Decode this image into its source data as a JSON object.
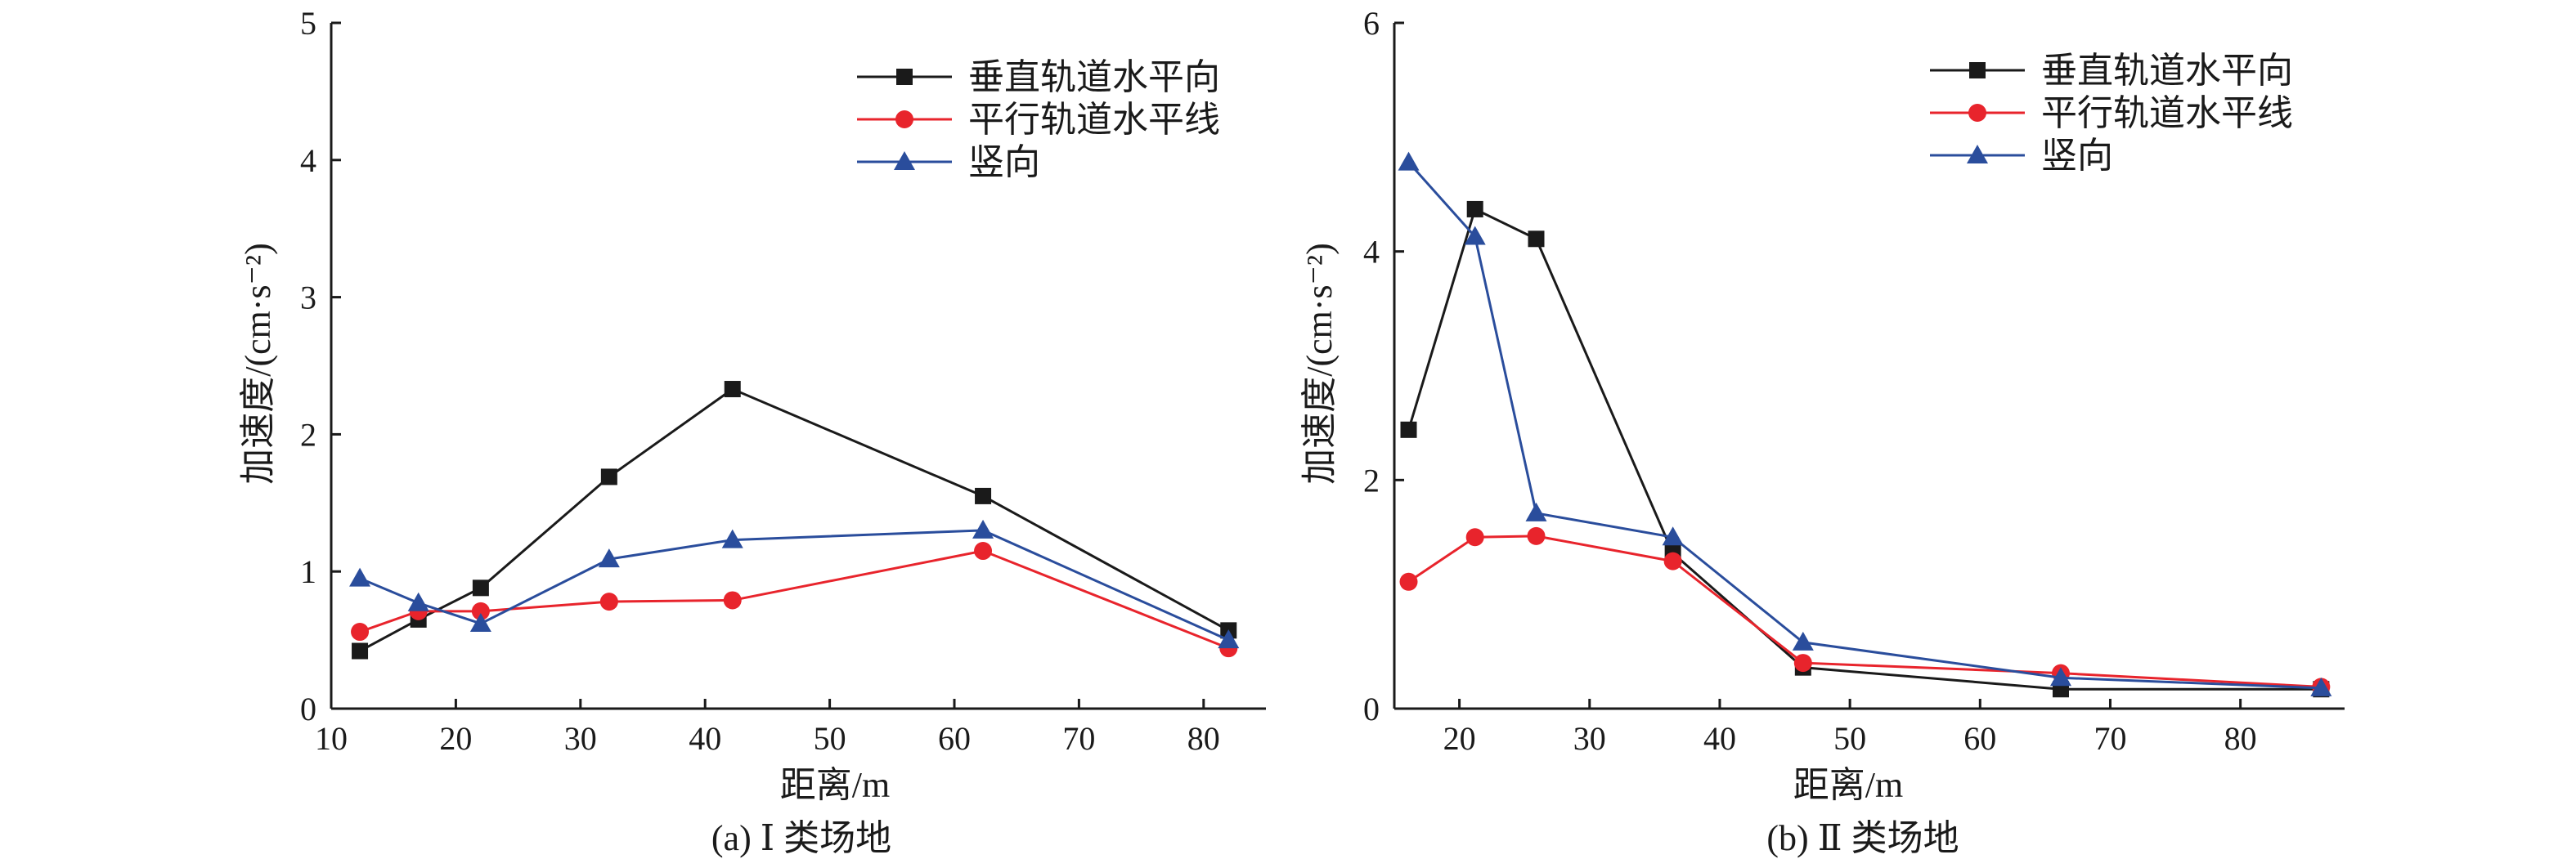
{
  "chart_data": [
    {
      "type": "line",
      "caption": "(a) Ⅰ 类场地",
      "xlabel": "距离/m",
      "ylabel": "加速度/(cm·s⁻²)",
      "xlim": [
        10,
        85
      ],
      "ylim": [
        0,
        5
      ],
      "xticks": [
        10,
        20,
        30,
        40,
        50,
        60,
        70,
        80
      ],
      "yticks": [
        0,
        1,
        2,
        3,
        4,
        5
      ],
      "grid": false,
      "legend_position": "top-right",
      "x": [
        12.3,
        17,
        22,
        32.3,
        42.2,
        62.3,
        82
      ],
      "series": [
        {
          "name": "垂直轨道水平向",
          "marker": "square",
          "color": "#1a1a1a",
          "values": [
            0.42,
            0.65,
            0.88,
            1.69,
            2.33,
            1.55,
            0.57
          ]
        },
        {
          "name": "平行轨道水平线",
          "marker": "circle",
          "color": "#e8242c",
          "values": [
            0.56,
            0.71,
            0.71,
            0.78,
            0.79,
            1.15,
            0.44
          ]
        },
        {
          "name": "竖向",
          "marker": "triangle",
          "color": "#2a4d9c",
          "values": [
            0.95,
            0.77,
            0.62,
            1.09,
            1.23,
            1.3,
            0.5
          ]
        }
      ]
    },
    {
      "type": "line",
      "caption": "(b) Ⅱ 类场地",
      "xlabel": "距离/m",
      "ylabel": "加速度/(cm·s⁻²)",
      "xlim": [
        15,
        88
      ],
      "ylim": [
        0,
        6
      ],
      "xticks": [
        20,
        30,
        40,
        50,
        60,
        70,
        80
      ],
      "yticks": [
        0,
        2,
        4,
        6
      ],
      "grid": false,
      "legend_position": "top-right",
      "series": [
        {
          "name": "垂直轨道水平向",
          "marker": "square",
          "color": "#1a1a1a",
          "x": [
            16.1,
            21.2,
            25.9,
            36.4,
            46.4,
            66.2,
            86.2
          ],
          "values": [
            2.44,
            4.37,
            4.11,
            1.36,
            0.36,
            0.17,
            0.17
          ]
        },
        {
          "name": "平行轨道水平线",
          "marker": "circle",
          "color": "#e8242c",
          "x": [
            16.1,
            21.2,
            25.9,
            36.4,
            46.4,
            66.2,
            86.2
          ],
          "values": [
            1.11,
            1.5,
            1.51,
            1.29,
            0.4,
            0.31,
            0.19
          ]
        },
        {
          "name": "竖向",
          "marker": "triangle",
          "color": "#2a4d9c",
          "x": [
            16.1,
            21.2,
            25.9,
            36.4,
            46.4,
            66.2,
            86.2
          ],
          "values": [
            4.78,
            4.13,
            1.71,
            1.5,
            0.58,
            0.27,
            0.18
          ]
        }
      ]
    }
  ]
}
